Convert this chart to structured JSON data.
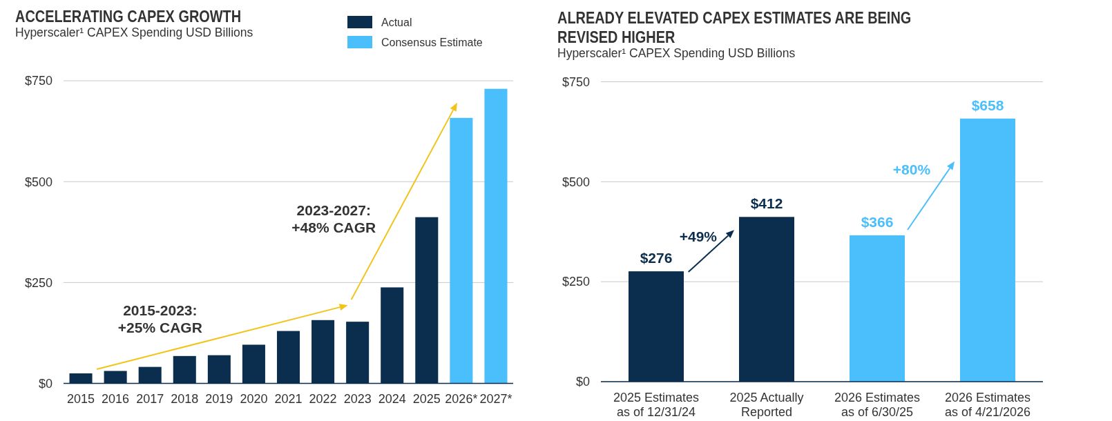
{
  "chart_data": [
    {
      "type": "bar",
      "title": "ACCELERATING CAPEX GROWTH",
      "subtitle": "Hyperscaler¹ CAPEX Spending USD Billions",
      "categories": [
        "2015",
        "2016",
        "2017",
        "2018",
        "2019",
        "2020",
        "2021",
        "2022",
        "2023",
        "2024",
        "2025",
        "2026*",
        "2027*"
      ],
      "stacked": true,
      "series": [
        {
          "name": "Actual",
          "color": "#0b2e4f",
          "values": [
            25,
            31,
            41,
            68,
            70,
            96,
            130,
            157,
            153,
            238,
            412,
            null,
            null
          ]
        },
        {
          "name": "Consensus Estimate",
          "color": "#4bbefc",
          "values": [
            null,
            null,
            null,
            null,
            null,
            null,
            null,
            null,
            null,
            null,
            null,
            658,
            730
          ]
        }
      ],
      "ylim": [
        0,
        750
      ],
      "yticks": [
        {
          "value": 0,
          "label": "$0"
        },
        {
          "value": 250,
          "label": "$250"
        },
        {
          "value": 500,
          "label": "$500"
        },
        {
          "value": 750,
          "label": "$750"
        }
      ],
      "grid": "y",
      "legend": "top right",
      "annotations": [
        "2015-2023:\n+25% CAGR",
        "2023-2027:\n+48% CAGR"
      ]
    },
    {
      "type": "bar",
      "title": "ALREADY ELEVATED CAPEX ESTIMATES ARE BEING REVISED HIGHER",
      "subtitle": "Hyperscaler¹ CAPEX Spending USD Billions",
      "categories": [
        "2025 Estimates\nas of 12/31/24",
        "2025 Actually\nReported",
        "2026 Estimates\nas of 6/30/25",
        "2026 Estimates\nas of 4/21/2026"
      ],
      "values": [
        276,
        412,
        366,
        658
      ],
      "colors": [
        "#0b2e4f",
        "#0b2e4f",
        "#4bbefc",
        "#4bbefc"
      ],
      "value_labels": [
        "$276",
        "$412",
        "$366",
        "$658"
      ],
      "ylim": [
        0,
        750
      ],
      "yticks": [
        {
          "value": 0,
          "label": "$0"
        },
        {
          "value": 250,
          "label": "$250"
        },
        {
          "value": 500,
          "label": "$500"
        },
        {
          "value": 750,
          "label": "$750"
        }
      ],
      "grid": "y",
      "annotations": [
        "+49%",
        "+80%"
      ]
    }
  ]
}
